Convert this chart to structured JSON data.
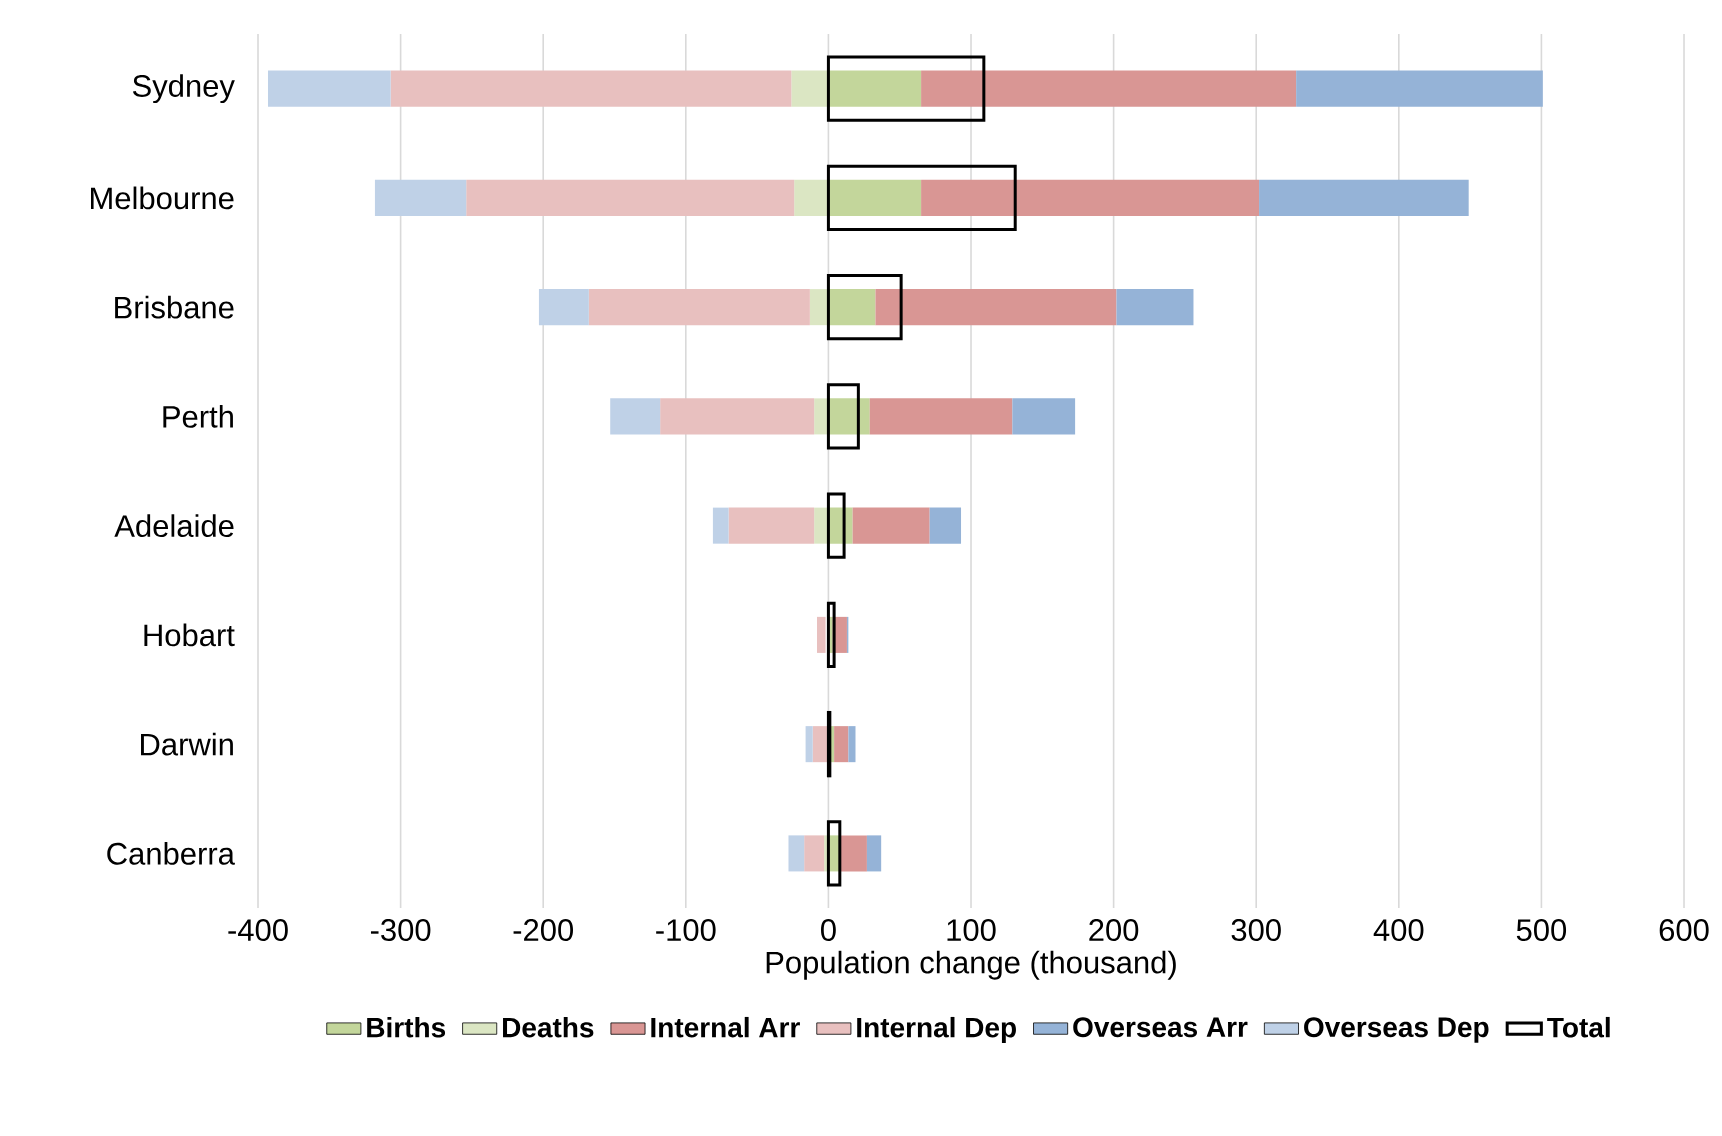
{
  "chart_data": {
    "type": "bar",
    "orientation": "horizontal",
    "xlabel": "Population change (thousand)",
    "categories": [
      "Sydney",
      "Melbourne",
      "Brisbane",
      "Perth",
      "Adelaide",
      "Hobart",
      "Darwin",
      "Canberra"
    ],
    "xlim": [
      -400,
      600
    ],
    "xticks": [
      -400,
      -300,
      -200,
      -100,
      0,
      100,
      200,
      300,
      400,
      500,
      600
    ],
    "grid": "x",
    "legend": "bottom",
    "series": [
      {
        "name": "Births",
        "color": "#c3d69b",
        "base": [
          0,
          0,
          0,
          0,
          0,
          0,
          0,
          0
        ],
        "values": [
          65,
          65,
          33,
          29,
          17,
          3,
          4,
          8
        ]
      },
      {
        "name": "Deaths",
        "color": "#dbe6c3",
        "base": [
          0,
          0,
          0,
          0,
          0,
          null,
          null,
          0
        ],
        "values": [
          -26,
          -24,
          -13,
          -10,
          -10,
          null,
          null,
          -3
        ]
      },
      {
        "name": "Internal Arr",
        "color": "#d99694",
        "base": [
          65,
          65,
          33,
          29,
          17,
          3,
          4,
          8
        ],
        "values": [
          263,
          237,
          169,
          100,
          54,
          10,
          10,
          19
        ]
      },
      {
        "name": "Internal Dep",
        "color": "#e8c0bf",
        "base": [
          -26,
          -24,
          -13,
          -10,
          -10,
          -2,
          0,
          -3
        ],
        "values": [
          -281,
          -230,
          -155,
          -108,
          -60,
          -6,
          -11,
          -14
        ]
      },
      {
        "name": "Overseas Arr",
        "color": "#95b3d7",
        "base": [
          328,
          302,
          202,
          129,
          71,
          13,
          14,
          27
        ],
        "values": [
          173,
          147,
          54,
          44,
          22,
          1,
          5,
          10
        ]
      },
      {
        "name": "Overseas Dep",
        "color": "#bfd1e7",
        "base": [
          -307,
          -254,
          -168,
          -118,
          -70,
          null,
          -11,
          -17
        ],
        "values": [
          -86,
          -64,
          -35,
          -35,
          -11,
          null,
          -5,
          -11
        ]
      },
      {
        "name": "Total",
        "color": "#000000",
        "values": [
          109,
          131,
          51,
          21,
          11,
          4,
          1,
          8
        ]
      }
    ]
  }
}
